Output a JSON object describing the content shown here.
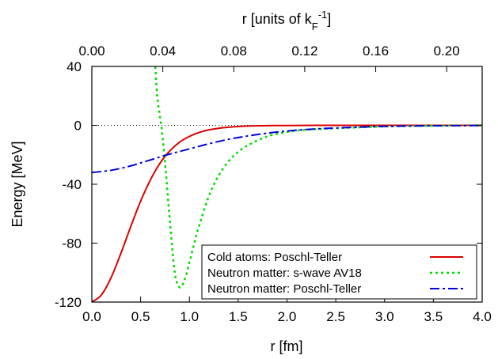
{
  "chart_data": {
    "type": "line",
    "xlabel": "r [fm]",
    "ylabel": "Energy [MeV]",
    "x2label_prefix": "r [units of k",
    "x2label_sub": "F",
    "x2label_sup": "-1",
    "x2label_suffix": "]",
    "xlim": [
      0.0,
      4.0
    ],
    "ylim": [
      -120,
      40
    ],
    "x2lim": [
      0.0,
      0.22
    ],
    "xticks": [
      "0.0",
      "0.5",
      "1.0",
      "1.5",
      "2.0",
      "2.5",
      "3.0",
      "3.5",
      "4.0"
    ],
    "yticks": [
      "-120",
      "-80",
      "-40",
      "0",
      "40"
    ],
    "x2ticks": [
      "0.00",
      "0.04",
      "0.08",
      "0.12",
      "0.16",
      "0.20"
    ],
    "zero_line": true,
    "legend_position": "bottom-right",
    "series": [
      {
        "name": "Cold atoms: Poschl-Teller",
        "color": "#dd0000",
        "dash": "solid",
        "x": [
          0.0,
          0.1,
          0.2,
          0.3,
          0.4,
          0.5,
          0.6,
          0.7,
          0.8,
          0.9,
          1.0,
          1.1,
          1.2,
          1.3,
          1.4,
          1.5,
          1.6,
          1.8,
          2.0,
          2.5,
          3.0,
          3.5,
          4.0
        ],
        "y": [
          -120,
          -115,
          -103,
          -86.5,
          -68.5,
          -51.5,
          -37,
          -25.6,
          -17.3,
          -11.4,
          -7.5,
          -4.8,
          -3.1,
          -2.0,
          -1.3,
          -0.8,
          -0.5,
          -0.2,
          -0.1,
          0,
          0,
          0,
          0
        ]
      },
      {
        "name": "Neutron matter: s-wave AV18",
        "color": "#00dd00",
        "dash": "dotted",
        "x": [
          0.65,
          0.67,
          0.7,
          0.72,
          0.75,
          0.8,
          0.85,
          0.9,
          0.95,
          1.0,
          1.05,
          1.1,
          1.2,
          1.3,
          1.4,
          1.5,
          1.6,
          1.8,
          2.0,
          2.2,
          2.5,
          3.0,
          3.5,
          4.0
        ],
        "y": [
          40,
          20,
          5,
          -5,
          -25,
          -65,
          -100,
          -110,
          -105,
          -93,
          -80,
          -68,
          -48,
          -34,
          -24.5,
          -18,
          -13.5,
          -7.5,
          -4.5,
          -3,
          -2,
          -0.8,
          -0.3,
          0
        ]
      },
      {
        "name": "Neutron matter: Poschl-Teller",
        "color": "#0000dd",
        "dash": "dash-dot",
        "x": [
          0.0,
          0.2,
          0.4,
          0.6,
          0.8,
          1.0,
          1.2,
          1.4,
          1.6,
          1.8,
          2.0,
          2.2,
          2.5,
          3.0,
          3.5,
          4.0
        ],
        "y": [
          -32,
          -30.5,
          -27.5,
          -23.5,
          -19.5,
          -16,
          -12.5,
          -9.5,
          -7.2,
          -5.3,
          -3.9,
          -2.8,
          -1.8,
          -0.7,
          -0.3,
          -0.1
        ]
      }
    ]
  }
}
